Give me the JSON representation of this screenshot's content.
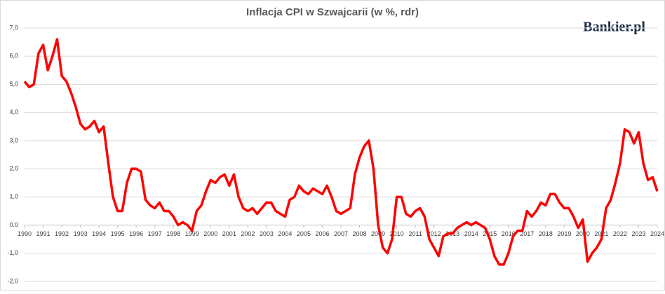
{
  "chart_data": {
    "type": "line",
    "title": "Inflacja CPI w Szwajcarii (w %, rdr)",
    "brand": "Bankier.pl",
    "xlim": [
      1990,
      2024
    ],
    "xticks": [
      1990,
      1991,
      1992,
      1993,
      1994,
      1995,
      1996,
      1997,
      1998,
      1999,
      2000,
      2001,
      2002,
      2003,
      2004,
      2005,
      2006,
      2007,
      2008,
      2009,
      2010,
      2011,
      2012,
      2013,
      2014,
      2015,
      2016,
      2017,
      2018,
      2019,
      2020,
      2021,
      2022,
      2023,
      2024
    ],
    "ylim": [
      -2,
      7
    ],
    "yticks": [
      {
        "value": -2,
        "label": "-2,0"
      },
      {
        "value": -1,
        "label": "-1,0"
      },
      {
        "value": 0,
        "label": "0,0"
      },
      {
        "value": 1,
        "label": "1,0"
      },
      {
        "value": 2,
        "label": "2,0"
      },
      {
        "value": 3,
        "label": "3,0"
      },
      {
        "value": 4,
        "label": "4,0"
      },
      {
        "value": 5,
        "label": "5,0"
      },
      {
        "value": 6,
        "label": "6,0"
      },
      {
        "value": 7,
        "label": "7,0"
      }
    ],
    "grid": true,
    "x": [
      1990,
      1990.25,
      1990.5,
      1990.75,
      1991,
      1991.25,
      1991.5,
      1991.75,
      1992,
      1992.25,
      1992.5,
      1992.75,
      1993,
      1993.25,
      1993.5,
      1993.75,
      1994,
      1994.25,
      1994.5,
      1994.75,
      1995,
      1995.25,
      1995.5,
      1995.75,
      1996,
      1996.25,
      1996.5,
      1996.75,
      1997,
      1997.25,
      1997.5,
      1997.75,
      1998,
      1998.25,
      1998.5,
      1998.75,
      1999,
      1999.25,
      1999.5,
      1999.75,
      2000,
      2000.25,
      2000.5,
      2000.75,
      2001,
      2001.25,
      2001.5,
      2001.75,
      2002,
      2002.25,
      2002.5,
      2002.75,
      2003,
      2003.25,
      2003.5,
      2003.75,
      2004,
      2004.25,
      2004.5,
      2004.75,
      2005,
      2005.25,
      2005.5,
      2005.75,
      2006,
      2006.25,
      2006.5,
      2006.75,
      2007,
      2007.25,
      2007.5,
      2007.75,
      2008,
      2008.25,
      2008.5,
      2008.75,
      2009,
      2009.25,
      2009.5,
      2009.75,
      2010,
      2010.25,
      2010.5,
      2010.75,
      2011,
      2011.25,
      2011.5,
      2011.75,
      2012,
      2012.25,
      2012.5,
      2012.75,
      2013,
      2013.25,
      2013.5,
      2013.75,
      2014,
      2014.25,
      2014.5,
      2014.75,
      2015,
      2015.25,
      2015.5,
      2015.75,
      2016,
      2016.25,
      2016.5,
      2016.75,
      2017,
      2017.25,
      2017.5,
      2017.75,
      2018,
      2018.25,
      2018.5,
      2018.75,
      2019,
      2019.25,
      2019.5,
      2019.75,
      2020,
      2020.25,
      2020.5,
      2020.75,
      2021,
      2021.25,
      2021.5,
      2021.75,
      2022,
      2022.25,
      2022.5,
      2022.75,
      2023,
      2023.25,
      2023.5,
      2023.75,
      2024
    ],
    "series": [
      {
        "color": "#ff0000",
        "values": [
          5.1,
          4.9,
          5.0,
          6.1,
          6.4,
          5.5,
          6.0,
          6.6,
          5.3,
          5.1,
          4.7,
          4.2,
          3.6,
          3.4,
          3.5,
          3.7,
          3.3,
          3.5,
          2.2,
          1.0,
          0.5,
          0.5,
          1.5,
          2.0,
          2.0,
          1.9,
          0.9,
          0.7,
          0.6,
          0.8,
          0.5,
          0.5,
          0.3,
          0.0,
          0.1,
          0.0,
          -0.2,
          0.5,
          0.7,
          1.2,
          1.6,
          1.5,
          1.7,
          1.8,
          1.4,
          1.8,
          1.0,
          0.6,
          0.5,
          0.6,
          0.4,
          0.6,
          0.8,
          0.8,
          0.5,
          0.4,
          0.3,
          0.9,
          1.0,
          1.4,
          1.2,
          1.1,
          1.3,
          1.2,
          1.1,
          1.4,
          1.0,
          0.5,
          0.4,
          0.5,
          0.6,
          1.8,
          2.4,
          2.8,
          3.0,
          2.0,
          0.0,
          -0.8,
          -1.0,
          -0.5,
          1.0,
          1.0,
          0.4,
          0.3,
          0.5,
          0.6,
          0.3,
          -0.5,
          -0.8,
          -1.1,
          -0.4,
          -0.3,
          -0.3,
          -0.1,
          0.0,
          0.1,
          0.0,
          0.1,
          0.0,
          -0.1,
          -0.5,
          -1.1,
          -1.4,
          -1.4,
          -1.0,
          -0.4,
          -0.2,
          -0.2,
          0.5,
          0.3,
          0.5,
          0.8,
          0.7,
          1.1,
          1.1,
          0.8,
          0.6,
          0.6,
          0.3,
          -0.1,
          0.2,
          -1.3,
          -1.0,
          -0.8,
          -0.5,
          0.6,
          0.9,
          1.5,
          2.2,
          3.4,
          3.3,
          2.9,
          3.3,
          2.2,
          1.6,
          1.7,
          1.2
        ]
      }
    ]
  }
}
